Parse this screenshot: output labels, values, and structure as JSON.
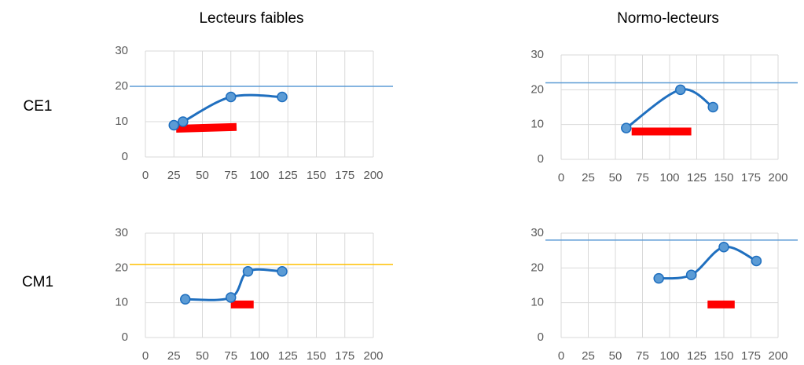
{
  "columns": [
    "Lecteurs faibles",
    "Normo-lecteurs"
  ],
  "rows": [
    "CE1",
    "CM1"
  ],
  "chart_data": [
    {
      "type": "line",
      "x": [
        25,
        33,
        75,
        120
      ],
      "series": [
        {
          "color": "#1f6fbf",
          "values": [
            9,
            10,
            17,
            17
          ]
        }
      ],
      "reference_line": {
        "value": 20,
        "color": "#5b9bd5"
      },
      "range_bar": {
        "x": [
          27,
          80
        ],
        "y": [
          8,
          8.5
        ],
        "color": "#ff0000"
      },
      "xlim": [
        0,
        200
      ],
      "xticks": [
        0,
        25,
        50,
        75,
        100,
        125,
        150,
        175,
        200
      ],
      "ylim": [
        0,
        30
      ],
      "yticks": [
        0,
        10,
        20,
        30
      ],
      "grid": true
    },
    {
      "type": "line",
      "x": [
        60,
        110,
        140
      ],
      "series": [
        {
          "color": "#1f6fbf",
          "values": [
            9,
            20,
            15
          ]
        }
      ],
      "reference_line": {
        "value": 22,
        "color": "#5b9bd5"
      },
      "range_bar": {
        "x": [
          65,
          120
        ],
        "y": [
          8,
          8
        ],
        "color": "#ff0000"
      },
      "xlim": [
        0,
        200
      ],
      "xticks": [
        0,
        25,
        50,
        75,
        100,
        125,
        150,
        175,
        200
      ],
      "ylim": [
        0,
        30
      ],
      "yticks": [
        0,
        10,
        20,
        30
      ],
      "grid": true
    },
    {
      "type": "line",
      "x": [
        35,
        75,
        90,
        120
      ],
      "series": [
        {
          "color": "#1f6fbf",
          "values": [
            11,
            11.5,
            19,
            19
          ]
        }
      ],
      "reference_line": {
        "value": 21,
        "color": "#ffc000"
      },
      "range_bar": {
        "x": [
          75,
          95
        ],
        "y": [
          9.5,
          9.5
        ],
        "color": "#ff0000"
      },
      "xlim": [
        0,
        200
      ],
      "xticks": [
        0,
        25,
        50,
        75,
        100,
        125,
        150,
        175,
        200
      ],
      "ylim": [
        0,
        30
      ],
      "yticks": [
        0,
        10,
        20,
        30
      ],
      "grid": true
    },
    {
      "type": "line",
      "x": [
        90,
        120,
        150,
        180
      ],
      "series": [
        {
          "color": "#1f6fbf",
          "values": [
            17,
            18,
            26,
            22
          ]
        }
      ],
      "reference_line": {
        "value": 28,
        "color": "#5b9bd5"
      },
      "range_bar": {
        "x": [
          135,
          160
        ],
        "y": [
          9.5,
          9.5
        ],
        "color": "#ff0000"
      },
      "xlim": [
        0,
        200
      ],
      "xticks": [
        0,
        25,
        50,
        75,
        100,
        125,
        150,
        175,
        200
      ],
      "ylim": [
        0,
        30
      ],
      "yticks": [
        0,
        10,
        20,
        30
      ],
      "grid": true
    }
  ]
}
